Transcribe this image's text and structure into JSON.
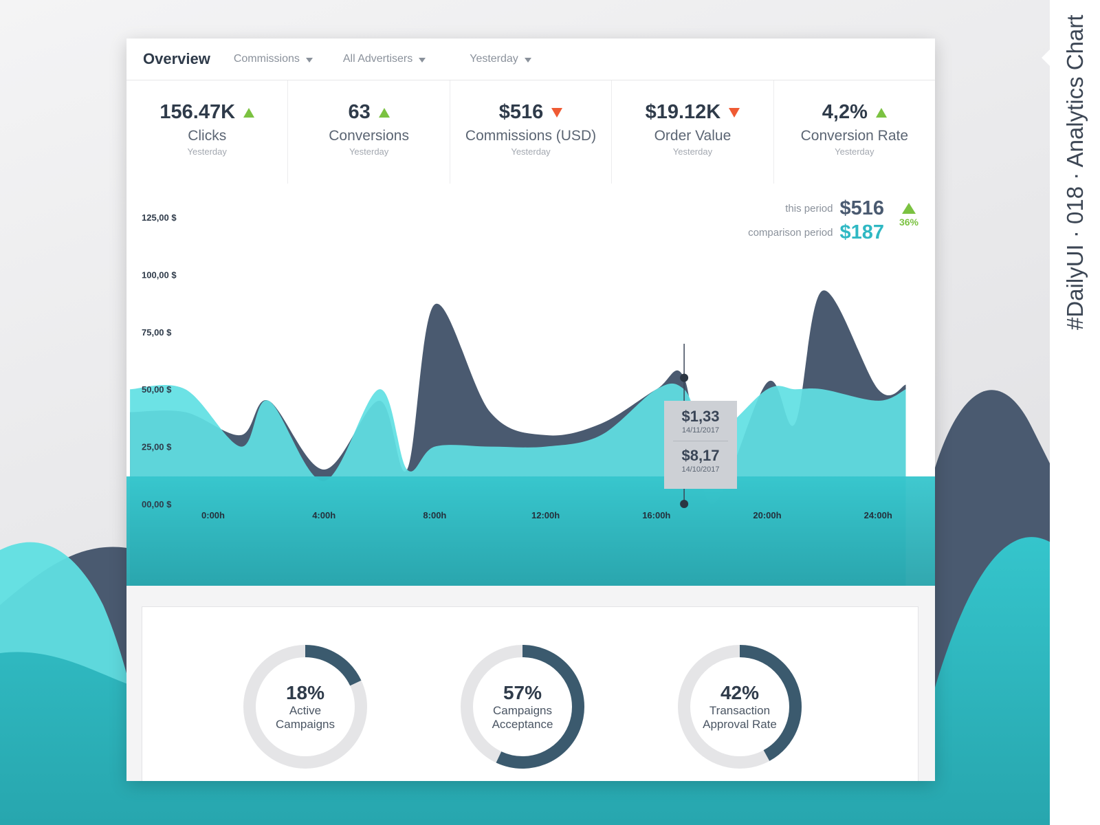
{
  "side_label": "#DailyUI · 018 · Analytics Chart",
  "colors": {
    "teal": "#2fb8c3",
    "light_teal": "#5fe0e3",
    "navy": "#4a5a70",
    "up": "#7bc241",
    "down": "#ef5a33"
  },
  "header": {
    "title": "Overview",
    "filters": [
      {
        "label": "Commissions"
      },
      {
        "label": "All Advertisers"
      },
      {
        "label": "Yesterday"
      }
    ]
  },
  "kpis": [
    {
      "value": "156.47K",
      "label": "Clicks",
      "sub": "Yesterday",
      "trend": "up"
    },
    {
      "value": "63",
      "label": "Conversions",
      "sub": "Yesterday",
      "trend": "up"
    },
    {
      "value": "$516",
      "label": "Commissions (USD)",
      "sub": "Yesterday",
      "trend": "down"
    },
    {
      "value": "$19.12K",
      "label": "Order Value",
      "sub": "Yesterday",
      "trend": "down"
    },
    {
      "value": "4,2%",
      "label": "Conversion Rate",
      "sub": "Yesterday",
      "trend": "up"
    }
  ],
  "legend": {
    "this_label": "this period",
    "this_value": "$516",
    "comp_label": "comparison period",
    "comp_value": "$187",
    "change": "36%",
    "change_trend": "up"
  },
  "tooltip": {
    "val1": "$1,33",
    "date1": "14/11/2017",
    "val2": "$8,17",
    "date2": "14/10/2017"
  },
  "chart_data": {
    "type": "area",
    "x_tick_labels": [
      "0:00h",
      "4:00h",
      "8:00h",
      "12:00h",
      "16:00h",
      "20:00h",
      "24:00h"
    ],
    "y_tick_labels": [
      "00,00 $",
      "25,00 $",
      "50,00 $",
      "75,00 $",
      "100,00 $",
      "125,00 $"
    ],
    "ylim": [
      0,
      125
    ],
    "x": [
      -3,
      -1,
      1,
      2,
      4,
      6,
      7,
      8,
      10,
      12,
      14,
      16,
      17,
      18,
      20,
      21,
      22,
      24,
      25
    ],
    "series": [
      {
        "values": [
          40,
          40,
          30,
          45,
          15,
          45,
          15,
          87,
          40,
          30,
          35,
          50,
          55,
          0,
          53,
          35,
          93,
          50,
          52
        ]
      },
      {
        "values": [
          50,
          50,
          25,
          45,
          10,
          50,
          15,
          25,
          25,
          25,
          30,
          50,
          50,
          30,
          50,
          50,
          50,
          45,
          50
        ]
      }
    ],
    "highlight": {
      "x": 17,
      "values": [
        55,
        0
      ]
    },
    "grid": false
  },
  "gauges": [
    {
      "percent_text": "18%",
      "value": 18,
      "line1": "Active",
      "line2": "Campaigns"
    },
    {
      "percent_text": "57%",
      "value": 57,
      "line1": "Campaigns",
      "line2": "Acceptance"
    },
    {
      "percent_text": "42%",
      "value": 42,
      "line1": "Transaction",
      "line2": "Approval Rate"
    }
  ]
}
